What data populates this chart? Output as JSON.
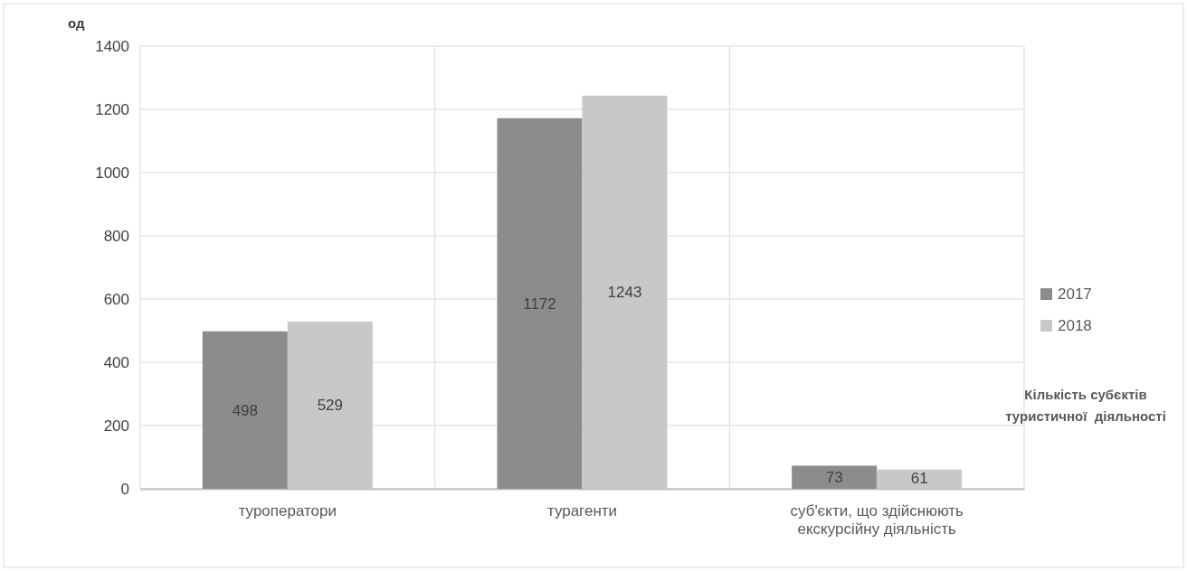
{
  "chart_data": {
    "type": "bar",
    "xlabel": "Кількість субєктів туристичної  діяльності",
    "ylabel": "од",
    "categories": [
      "туроператори",
      "турагенти",
      "суб'єкти, що здійснюють екскурсійну діяльність"
    ],
    "series": [
      {
        "name": "2017",
        "color": "#8c8c8c",
        "values": [
          498,
          1172,
          73
        ]
      },
      {
        "name": "2018",
        "color": "#c8c8c8",
        "values": [
          529,
          1243,
          61
        ]
      }
    ],
    "ylim": [
      0,
      1400
    ],
    "yticks": [
      0,
      200,
      400,
      600,
      800,
      1000,
      1200,
      1400
    ],
    "grid": true,
    "legend": "right",
    "data_labels": true
  }
}
